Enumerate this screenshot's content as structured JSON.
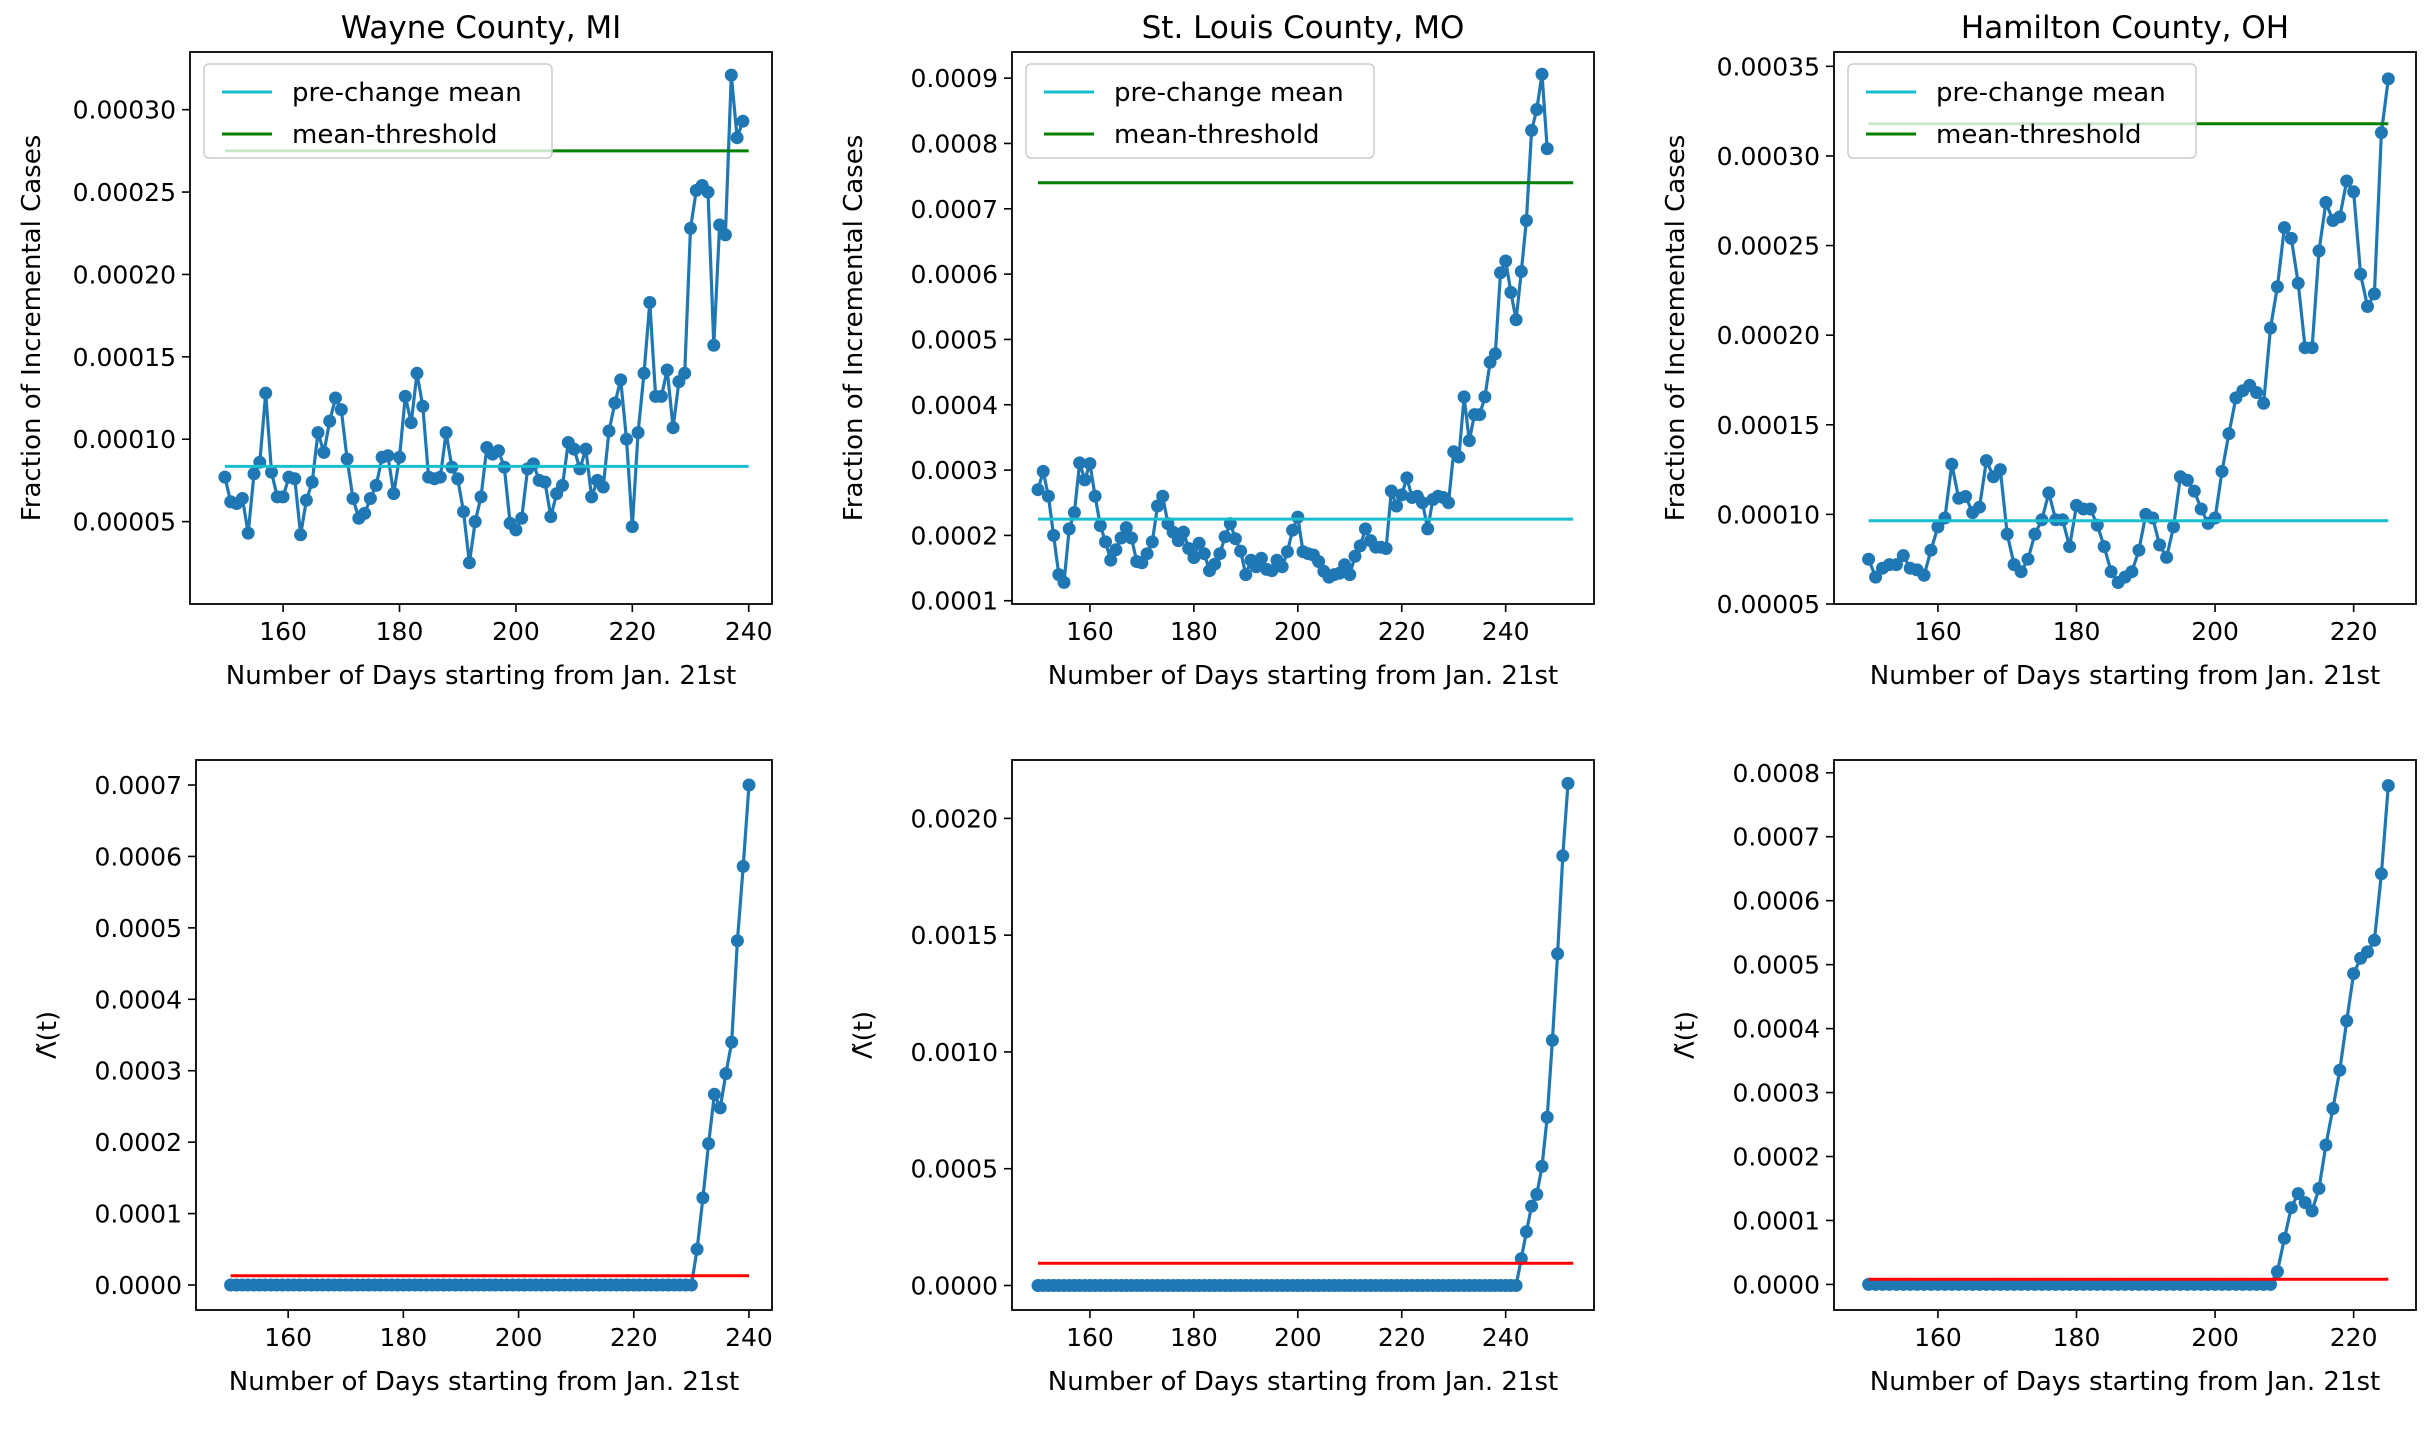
{
  "chart_data": [
    {
      "type": "line",
      "title": "Wayne County, MI",
      "xlabel": "Number of Days starting from Jan. 21st",
      "ylabel": "Fraction of Incremental Cases",
      "xlim": [
        144,
        244
      ],
      "ylim": [
        0.0,
        0.000335
      ],
      "xticks": [
        160,
        180,
        200,
        220,
        240
      ],
      "yticks": [
        5e-05,
        0.0001,
        0.00015,
        0.0002,
        0.00025,
        0.0003
      ],
      "ytick_labels": [
        "0.00005",
        "0.00010",
        "0.00015",
        "0.00020",
        "0.00025",
        "0.00030"
      ],
      "legend": {
        "placement": "top-left",
        "entries": [
          "pre-change mean",
          "mean-threshold"
        ]
      },
      "series": [
        {
          "name": "data",
          "color": "#1f77b4",
          "marker": "circle",
          "x_start": 150,
          "y": [
            7.7e-05,
            6.2e-05,
            6.1e-05,
            6.4e-05,
            4.3e-05,
            7.9e-05,
            8.6e-05,
            0.000128,
            8e-05,
            6.5e-05,
            6.5e-05,
            7.7e-05,
            7.6e-05,
            4.2e-05,
            6.3e-05,
            7.4e-05,
            0.000104,
            9.2e-05,
            0.000111,
            0.000125,
            0.000118,
            8.8e-05,
            6.4e-05,
            5.2e-05,
            5.5e-05,
            6.4e-05,
            7.2e-05,
            8.9e-05,
            9e-05,
            6.7e-05,
            8.9e-05,
            0.000126,
            0.00011,
            0.00014,
            0.00012,
            7.7e-05,
            7.6e-05,
            7.7e-05,
            0.000104,
            8.3e-05,
            7.6e-05,
            5.6e-05,
            2.5e-05,
            5e-05,
            6.5e-05,
            9.5e-05,
            9.1e-05,
            9.3e-05,
            8.3e-05,
            4.9e-05,
            4.5e-05,
            5.2e-05,
            8.2e-05,
            8.5e-05,
            7.5e-05,
            7.4e-05,
            5.3e-05,
            6.7e-05,
            7.2e-05,
            9.8e-05,
            9.4e-05,
            8.2e-05,
            9.4e-05,
            6.5e-05,
            7.5e-05,
            7.1e-05,
            0.000105,
            0.000122,
            0.000136,
            0.0001,
            4.7e-05,
            0.000104,
            0.00014,
            0.000183,
            0.000126,
            0.000126,
            0.000142,
            0.000107,
            0.000135,
            0.00014,
            0.000228,
            0.000251,
            0.000254,
            0.00025,
            0.000157,
            0.00023,
            0.000224,
            0.000321,
            0.000283,
            0.000293
          ]
        },
        {
          "name": "pre-change mean",
          "color": "#17becf",
          "x": [
            150,
            240
          ],
          "y": [
            8.35e-05,
            8.35e-05
          ]
        },
        {
          "name": "mean-threshold",
          "color": "#008000",
          "x": [
            150,
            240
          ],
          "y": [
            0.000275,
            0.000275
          ]
        }
      ]
    },
    {
      "type": "line",
      "title": "St. Louis County, MO",
      "xlabel": "Number of Days starting from Jan. 21st",
      "ylabel": "Fraction of Incremental Cases",
      "xlim": [
        145,
        257
      ],
      "ylim": [
        9.5e-05,
        0.00094
      ],
      "xticks": [
        160,
        180,
        200,
        220,
        240
      ],
      "yticks": [
        0.0001,
        0.0002,
        0.0003,
        0.0004,
        0.0005,
        0.0006,
        0.0007,
        0.0008,
        0.0009
      ],
      "ytick_labels": [
        "0.0001",
        "0.0002",
        "0.0003",
        "0.0004",
        "0.0005",
        "0.0006",
        "0.0007",
        "0.0008",
        "0.0009"
      ],
      "legend": {
        "placement": "top-left",
        "entries": [
          "pre-change mean",
          "mean-threshold"
        ]
      },
      "series": [
        {
          "name": "data",
          "color": "#1f77b4",
          "marker": "circle",
          "x_start": 150,
          "y": [
            0.00027,
            0.000298,
            0.00026,
            0.0002,
            0.00014,
            0.000128,
            0.00021,
            0.000235,
            0.000311,
            0.000285,
            0.00031,
            0.00026,
            0.000215,
            0.00019,
            0.000162,
            0.000178,
            0.000196,
            0.000212,
            0.000196,
            0.00016,
            0.000158,
            0.000172,
            0.00019,
            0.000245,
            0.00026,
            0.000218,
            0.000205,
            0.000192,
            0.000205,
            0.00018,
            0.000166,
            0.000188,
            0.000172,
            0.000146,
            0.000156,
            0.000172,
            0.000198,
            0.000218,
            0.000195,
            0.000176,
            0.00014,
            0.000162,
            0.000152,
            0.000165,
            0.000148,
            0.000146,
            0.000162,
            0.000152,
            0.000175,
            0.000208,
            0.000228,
            0.000175,
            0.000172,
            0.00017,
            0.00016,
            0.000145,
            0.000136,
            0.00014,
            0.000142,
            0.000155,
            0.00014,
            0.000168,
            0.000184,
            0.00021,
            0.000192,
            0.000182,
            0.000182,
            0.00018,
            0.000268,
            0.000245,
            0.000262,
            0.000288,
            0.000258,
            0.00026,
            0.00025,
            0.00021,
            0.000255,
            0.00026,
            0.000258,
            0.00025,
            0.000328,
            0.00032,
            0.000412,
            0.000345,
            0.000385,
            0.000385,
            0.000412,
            0.000465,
            0.000478,
            0.000602,
            0.00062,
            0.000572,
            0.00053,
            0.000604,
            0.000682,
            0.00082,
            0.000852,
            0.000906,
            0.000792
          ]
        },
        {
          "name": "pre-change mean",
          "color": "#17becf",
          "x": [
            150,
            253
          ],
          "y": [
            0.000225,
            0.000225
          ]
        },
        {
          "name": "mean-threshold",
          "color": "#008000",
          "x": [
            150,
            253
          ],
          "y": [
            0.00074,
            0.00074
          ]
        }
      ]
    },
    {
      "type": "line",
      "title": "Hamilton County, OH",
      "xlabel": "Number of Days starting from Jan. 21st",
      "ylabel": "Fraction of Incremental Cases",
      "xlim": [
        145,
        229
      ],
      "ylim": [
        5e-05,
        0.000358
      ],
      "xticks": [
        160,
        180,
        200,
        220
      ],
      "yticks": [
        5e-05,
        0.0001,
        0.00015,
        0.0002,
        0.00025,
        0.0003,
        0.00035
      ],
      "ytick_labels": [
        "0.00005",
        "0.00010",
        "0.00015",
        "0.00020",
        "0.00025",
        "0.00030",
        "0.00035"
      ],
      "legend": {
        "placement": "top-left",
        "entries": [
          "pre-change mean",
          "mean-threshold"
        ]
      },
      "series": [
        {
          "name": "data",
          "color": "#1f77b4",
          "marker": "circle",
          "x_start": 150,
          "y": [
            7.5e-05,
            6.5e-05,
            7e-05,
            7.2e-05,
            7.2e-05,
            7.7e-05,
            7e-05,
            6.9e-05,
            6.6e-05,
            8e-05,
            9.3e-05,
            9.8e-05,
            0.000128,
            0.000109,
            0.00011,
            0.000101,
            0.000104,
            0.00013,
            0.000121,
            0.000125,
            8.9e-05,
            7.2e-05,
            6.8e-05,
            7.5e-05,
            8.9e-05,
            9.7e-05,
            0.000112,
            9.7e-05,
            9.7e-05,
            8.2e-05,
            0.000105,
            0.000103,
            0.000103,
            9.4e-05,
            8.2e-05,
            6.8e-05,
            6.2e-05,
            6.5e-05,
            6.8e-05,
            8e-05,
            0.0001,
            9.8e-05,
            8.3e-05,
            7.6e-05,
            9.3e-05,
            0.000121,
            0.000119,
            0.000113,
            0.000103,
            9.5e-05,
            9.8e-05,
            0.000124,
            0.000145,
            0.000165,
            0.000169,
            0.000172,
            0.000168,
            0.000162,
            0.000204,
            0.000227,
            0.00026,
            0.000254,
            0.000229,
            0.000193,
            0.000193,
            0.000247,
            0.000274,
            0.000264,
            0.000266,
            0.000286,
            0.00028,
            0.000234,
            0.000216,
            0.000223,
            0.000313,
            0.000343
          ]
        },
        {
          "name": "pre-change mean",
          "color": "#17becf",
          "x": [
            150,
            225
          ],
          "y": [
            9.65e-05,
            9.65e-05
          ]
        },
        {
          "name": "mean-threshold",
          "color": "#008000",
          "x": [
            150,
            225
          ],
          "y": [
            0.000318,
            0.000318
          ]
        }
      ]
    },
    {
      "type": "line",
      "title": "",
      "xlabel": "Number of Days starting from Jan. 21st",
      "ylabel": "Λ̃(t)",
      "xlim": [
        144,
        244
      ],
      "ylim": [
        -3.5e-05,
        0.000735
      ],
      "xticks": [
        160,
        180,
        200,
        220,
        240
      ],
      "yticks": [
        0.0,
        0.0001,
        0.0002,
        0.0003,
        0.0004,
        0.0005,
        0.0006,
        0.0007
      ],
      "ytick_labels": [
        "0.0000",
        "0.0001",
        "0.0002",
        "0.0003",
        "0.0004",
        "0.0005",
        "0.0006",
        "0.0007"
      ],
      "series": [
        {
          "name": "statistic",
          "color": "#1f77b4",
          "marker": "circle",
          "x_start": 150,
          "zeros_count": 81,
          "tail": [
            5e-05,
            0.000122,
            0.000198,
            0.000267,
            0.000248,
            0.000296,
            0.00034,
            0.000482,
            0.000586,
            0.0007
          ]
        },
        {
          "name": "threshold",
          "color": "#ff0000",
          "x": [
            150,
            240
          ],
          "y": [
            1.3e-05,
            1.3e-05
          ]
        }
      ]
    },
    {
      "type": "line",
      "title": "",
      "xlabel": "Number of Days starting from Jan. 21st",
      "ylabel": "Λ̃(t)",
      "xlim": [
        145,
        257
      ],
      "ylim": [
        -0.000105,
        0.00225
      ],
      "xticks": [
        160,
        180,
        200,
        220,
        240
      ],
      "yticks": [
        0.0,
        0.0005,
        0.001,
        0.0015,
        0.002
      ],
      "ytick_labels": [
        "0.0000",
        "0.0005",
        "0.0010",
        "0.0015",
        "0.0020"
      ],
      "series": [
        {
          "name": "statistic",
          "color": "#1f77b4",
          "marker": "circle",
          "x_start": 150,
          "zeros_count": 93,
          "tail": [
            0.000115,
            0.00023,
            0.00034,
            0.00039,
            0.00051,
            0.00072,
            0.00105,
            0.00142,
            0.00184,
            0.00215
          ]
        },
        {
          "name": "threshold",
          "color": "#ff0000",
          "x": [
            150,
            253
          ],
          "y": [
            9.5e-05,
            9.5e-05
          ]
        }
      ]
    },
    {
      "type": "line",
      "title": "",
      "xlabel": "Number of Days starting from Jan. 21st",
      "ylabel": "Λ̃(t)",
      "xlim": [
        145,
        229
      ],
      "ylim": [
        -4e-05,
        0.00082
      ],
      "xticks": [
        160,
        180,
        200,
        220
      ],
      "yticks": [
        0.0,
        0.0001,
        0.0002,
        0.0003,
        0.0004,
        0.0005,
        0.0006,
        0.0007,
        0.0008
      ],
      "ytick_labels": [
        "0.0000",
        "0.0001",
        "0.0002",
        "0.0003",
        "0.0004",
        "0.0005",
        "0.0006",
        "0.0007",
        "0.0008"
      ],
      "series": [
        {
          "name": "statistic",
          "color": "#1f77b4",
          "marker": "circle",
          "x_start": 150,
          "zeros_count": 59,
          "tail": [
            2e-05,
            7.2e-05,
            0.00012,
            0.000142,
            0.000128,
            0.000115,
            0.00015,
            0.000218,
            0.000275,
            0.000335,
            0.000412,
            0.000486,
            0.00051,
            0.00052,
            0.000538,
            0.000642,
            0.00078
          ]
        },
        {
          "name": "threshold",
          "color": "#ff0000",
          "x": [
            150,
            225
          ],
          "y": [
            8e-06,
            8e-06
          ]
        }
      ]
    }
  ]
}
